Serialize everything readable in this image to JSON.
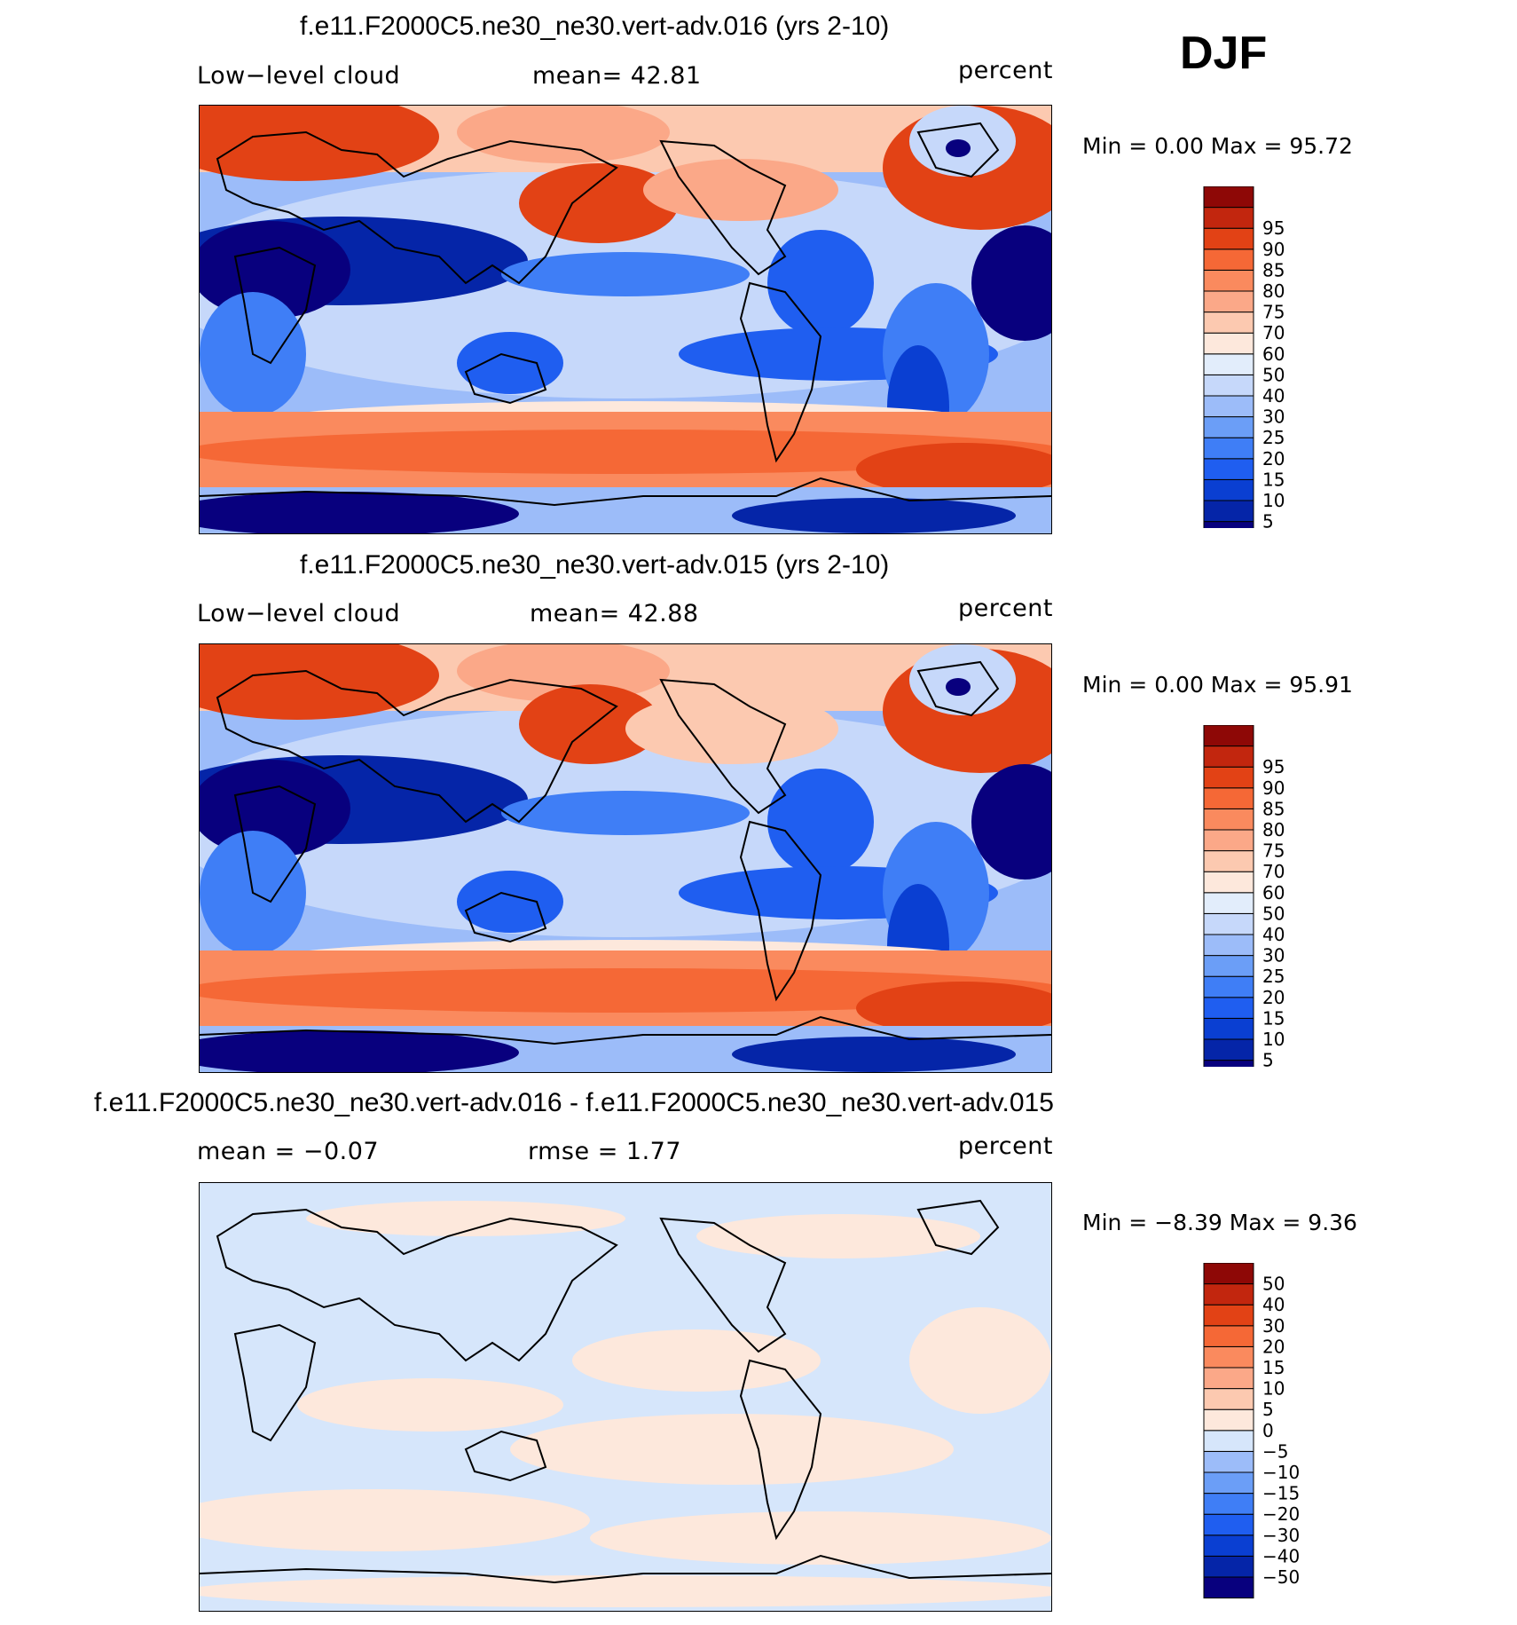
{
  "season": "DJF",
  "colors": {
    "abs": [
      "#08007e",
      "#0525a8",
      "#0a3fd2",
      "#1f5ef0",
      "#3f7ef6",
      "#6b9ef7",
      "#9cbcf9",
      "#c6d8fa",
      "#e2edfb",
      "#fde8dc",
      "#fcc9b0",
      "#fba888",
      "#fa8a5e",
      "#f56836",
      "#e24215",
      "#c2260e",
      "#8e0806"
    ],
    "diff": [
      "#08007e",
      "#0525a8",
      "#0a3fd2",
      "#1f5ef0",
      "#3f7ef6",
      "#6b9ef7",
      "#9cbcf9",
      "#d6e6fb",
      "#fde8dc",
      "#fcc9b0",
      "#fba888",
      "#fa8a5e",
      "#f56836",
      "#e24215",
      "#c2260e",
      "#8e0806"
    ]
  },
  "panels": [
    {
      "title": "f.e11.F2000C5.ne30_ne30.vert-adv.016 (yrs 2-10)",
      "left_label": "Low−level  cloud",
      "center_label": "mean=   42.81",
      "right_label": "percent",
      "minmax": "Min =     0.00  Max =    95.72"
    },
    {
      "title": "f.e11.F2000C5.ne30_ne30.vert-adv.015 (yrs 2-10)",
      "left_label": "Low−level  cloud",
      "center_label": "mean=   42.88",
      "right_label": "percent",
      "minmax": "Min =     0.00  Max =    95.91"
    },
    {
      "title": "f.e11.F2000C5.ne30_ne30.vert-adv.016 - f.e11.F2000C5.ne30_ne30.vert-adv.015",
      "left_label": "mean =   −0.07",
      "center_label": "rmse =     1.77",
      "right_label": "percent",
      "minmax": "Min =   −8.39  Max =     9.36"
    }
  ],
  "chart_data": [
    {
      "type": "heatmap",
      "title": "f.e11.F2000C5.ne30_ne30.vert-adv.016 (yrs 2-10)",
      "variable": "Low-level cloud",
      "units": "percent",
      "mean": 42.81,
      "min": 0.0,
      "max": 95.72,
      "colorbar_levels": [
        5,
        10,
        15,
        20,
        25,
        30,
        40,
        50,
        60,
        70,
        75,
        80,
        85,
        90,
        95
      ]
    },
    {
      "type": "heatmap",
      "title": "f.e11.F2000C5.ne30_ne30.vert-adv.015 (yrs 2-10)",
      "variable": "Low-level cloud",
      "units": "percent",
      "mean": 42.88,
      "min": 0.0,
      "max": 95.91,
      "colorbar_levels": [
        5,
        10,
        15,
        20,
        25,
        30,
        40,
        50,
        60,
        70,
        75,
        80,
        85,
        90,
        95
      ]
    },
    {
      "type": "heatmap",
      "title": "f.e11.F2000C5.ne30_ne30.vert-adv.016 - f.e11.F2000C5.ne30_ne30.vert-adv.015",
      "units": "percent",
      "mean": -0.07,
      "rmse": 1.77,
      "min": -8.39,
      "max": 9.36,
      "colorbar_levels": [
        -50,
        -40,
        -30,
        -20,
        -15,
        -10,
        -5,
        0,
        5,
        10,
        15,
        20,
        30,
        40,
        50
      ]
    }
  ]
}
